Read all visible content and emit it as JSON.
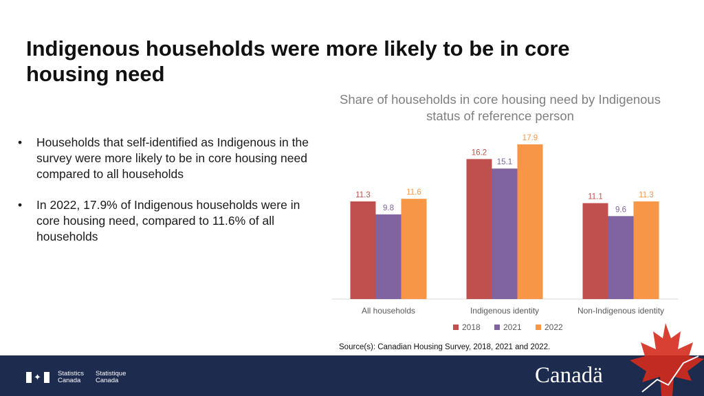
{
  "slide": {
    "title": "Indigenous households were more likely to be in core housing need",
    "bullets": [
      "Households that self-identified as Indigenous in the survey were more likely to be in core housing need compared to all households",
      "In 2022, 17.9% of Indigenous households were in core housing need, compared to 11.6% of all households"
    ],
    "source": "Source(s): Canadian Housing Survey, 2018, 2021 and 2022."
  },
  "chart_data": {
    "type": "bar",
    "title": "Share of households in core housing need by Indigenous status of reference person",
    "categories": [
      "All households",
      "Indigenous identity",
      "Non-Indigenous identity"
    ],
    "series": [
      {
        "name": "2018",
        "values": [
          11.3,
          16.2,
          11.1
        ],
        "color": "#c0504d"
      },
      {
        "name": "2021",
        "values": [
          9.8,
          15.1,
          9.6
        ],
        "color": "#8064a2"
      },
      {
        "name": "2022",
        "values": [
          11.6,
          17.9,
          11.3
        ],
        "color": "#f79646"
      }
    ],
    "ylim": [
      0,
      20
    ],
    "grid": false,
    "legend": "bottom",
    "data_labels": true
  },
  "footer": {
    "agency_en": "Statistics\nCanada",
    "agency_fr": "Statistique\nCanada",
    "wordmark": "Canadä",
    "bar_color": "#1d2b4e"
  }
}
